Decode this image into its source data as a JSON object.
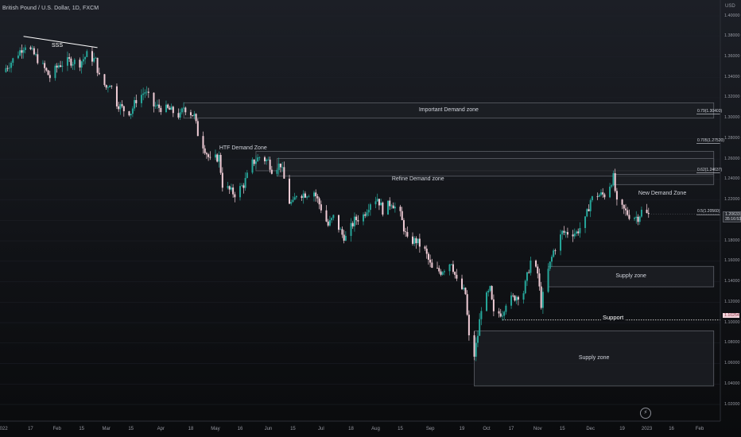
{
  "symbol": {
    "title": "British Pound / U.S. Dollar, 1D, FXCM"
  },
  "chart_data": {
    "type": "candlestick",
    "ylim": [
      1.02,
      1.4
    ],
    "price_ticks": [
      "1.40000",
      "1.38000",
      "1.36000",
      "1.34000",
      "1.32000",
      "1.30000",
      "1.28000",
      "1.26000",
      "1.24000",
      "1.22000",
      "1.20000",
      "1.18000",
      "1.16000",
      "1.14000",
      "1.12000",
      "1.10000",
      "1.08000",
      "1.06000",
      "1.04000",
      "1.02000"
    ],
    "currency": "USD",
    "time_ticks": [
      {
        "label": "2022",
        "date": "2022-01-01"
      },
      {
        "label": "17",
        "date": "2022-01-17"
      },
      {
        "label": "Feb",
        "date": "2022-02-01"
      },
      {
        "label": "15",
        "date": "2022-02-15"
      },
      {
        "label": "Mar",
        "date": "2022-03-01"
      },
      {
        "label": "15",
        "date": "2022-03-15"
      },
      {
        "label": "Apr",
        "date": "2022-04-01"
      },
      {
        "label": "18",
        "date": "2022-04-18"
      },
      {
        "label": "May",
        "date": "2022-05-02"
      },
      {
        "label": "16",
        "date": "2022-05-16"
      },
      {
        "label": "Jun",
        "date": "2022-06-01"
      },
      {
        "label": "15",
        "date": "2022-06-15"
      },
      {
        "label": "Jul",
        "date": "2022-07-01"
      },
      {
        "label": "18",
        "date": "2022-07-18"
      },
      {
        "label": "Aug",
        "date": "2022-08-01"
      },
      {
        "label": "15",
        "date": "2022-08-15"
      },
      {
        "label": "Sep",
        "date": "2022-09-01"
      },
      {
        "label": "19",
        "date": "2022-09-19"
      },
      {
        "label": "Oct",
        "date": "2022-10-03"
      },
      {
        "label": "17",
        "date": "2022-10-17"
      },
      {
        "label": "Nov",
        "date": "2022-11-01"
      },
      {
        "label": "15",
        "date": "2022-11-15"
      },
      {
        "label": "Dec",
        "date": "2022-12-01"
      },
      {
        "label": "19",
        "date": "2022-12-19"
      },
      {
        "label": "2023",
        "date": "2023-01-02"
      },
      {
        "label": "16",
        "date": "2023-01-16"
      },
      {
        "label": "Feb",
        "date": "2023-02-01"
      }
    ],
    "close_path": [
      [
        "2022-01-01",
        1.345
      ],
      [
        "2022-01-06",
        1.355
      ],
      [
        "2022-01-12",
        1.368
      ],
      [
        "2022-01-14",
        1.372
      ],
      [
        "2022-01-20",
        1.36
      ],
      [
        "2022-01-25",
        1.348
      ],
      [
        "2022-01-28",
        1.34
      ],
      [
        "2022-02-02",
        1.352
      ],
      [
        "2022-02-08",
        1.356
      ],
      [
        "2022-02-14",
        1.354
      ],
      [
        "2022-02-18",
        1.362
      ],
      [
        "2022-02-23",
        1.356
      ],
      [
        "2022-02-25",
        1.34
      ],
      [
        "2022-03-01",
        1.33
      ],
      [
        "2022-03-03",
        1.335
      ],
      [
        "2022-03-07",
        1.315
      ],
      [
        "2022-03-11",
        1.308
      ],
      [
        "2022-03-15",
        1.306
      ],
      [
        "2022-03-18",
        1.318
      ],
      [
        "2022-03-23",
        1.326
      ],
      [
        "2022-03-28",
        1.312
      ],
      [
        "2022-04-01",
        1.31
      ],
      [
        "2022-04-06",
        1.308
      ],
      [
        "2022-04-12",
        1.302
      ],
      [
        "2022-04-14",
        1.311
      ],
      [
        "2022-04-20",
        1.302
      ],
      [
        "2022-04-22",
        1.285
      ],
      [
        "2022-04-26",
        1.27
      ],
      [
        "2022-04-29",
        1.258
      ],
      [
        "2022-05-04",
        1.262
      ],
      [
        "2022-05-06",
        1.235
      ],
      [
        "2022-05-11",
        1.228
      ],
      [
        "2022-05-13",
        1.226
      ],
      [
        "2022-05-18",
        1.235
      ],
      [
        "2022-05-23",
        1.256
      ],
      [
        "2022-05-27",
        1.262
      ],
      [
        "2022-06-01",
        1.258
      ],
      [
        "2022-06-03",
        1.25
      ],
      [
        "2022-06-08",
        1.255
      ],
      [
        "2022-06-13",
        1.218
      ],
      [
        "2022-06-15",
        1.216
      ],
      [
        "2022-06-17",
        1.226
      ],
      [
        "2022-06-22",
        1.226
      ],
      [
        "2022-06-27",
        1.228
      ],
      [
        "2022-07-01",
        1.212
      ],
      [
        "2022-07-05",
        1.195
      ],
      [
        "2022-07-08",
        1.203
      ],
      [
        "2022-07-13",
        1.186
      ],
      [
        "2022-07-15",
        1.183
      ],
      [
        "2022-07-20",
        1.2
      ],
      [
        "2022-07-25",
        1.205
      ],
      [
        "2022-07-29",
        1.218
      ],
      [
        "2022-08-02",
        1.222
      ],
      [
        "2022-08-05",
        1.21
      ],
      [
        "2022-08-10",
        1.218
      ],
      [
        "2022-08-15",
        1.205
      ],
      [
        "2022-08-19",
        1.18
      ],
      [
        "2022-08-24",
        1.18
      ],
      [
        "2022-08-29",
        1.17
      ],
      [
        "2022-09-02",
        1.152
      ],
      [
        "2022-09-07",
        1.15
      ],
      [
        "2022-09-13",
        1.16
      ],
      [
        "2022-09-16",
        1.14
      ],
      [
        "2022-09-21",
        1.128
      ],
      [
        "2022-09-23",
        1.085
      ],
      [
        "2022-09-26",
        1.068
      ],
      [
        "2022-09-28",
        1.088
      ],
      [
        "2022-09-30",
        1.115
      ],
      [
        "2022-10-05",
        1.132
      ],
      [
        "2022-10-07",
        1.108
      ],
      [
        "2022-10-12",
        1.11
      ],
      [
        "2022-10-14",
        1.12
      ],
      [
        "2022-10-19",
        1.125
      ],
      [
        "2022-10-24",
        1.13
      ],
      [
        "2022-10-28",
        1.16
      ],
      [
        "2022-11-01",
        1.148
      ],
      [
        "2022-11-03",
        1.118
      ],
      [
        "2022-11-07",
        1.151
      ],
      [
        "2022-11-10",
        1.17
      ],
      [
        "2022-11-15",
        1.188
      ],
      [
        "2022-11-18",
        1.188
      ],
      [
        "2022-11-23",
        1.188
      ],
      [
        "2022-11-28",
        1.2
      ],
      [
        "2022-12-01",
        1.22
      ],
      [
        "2022-12-05",
        1.225
      ],
      [
        "2022-12-09",
        1.225
      ],
      [
        "2022-12-14",
        1.242
      ],
      [
        "2022-12-16",
        1.216
      ],
      [
        "2022-12-20",
        1.21
      ],
      [
        "2022-12-23",
        1.205
      ],
      [
        "2022-12-28",
        1.203
      ],
      [
        "2022-12-30",
        1.209
      ],
      [
        "2023-01-03",
        1.205
      ]
    ],
    "zones": [
      {
        "label": "Important Demand zone",
        "from": "2022-04-14",
        "to": "2023-02-09",
        "low": 1.3,
        "high": 1.315,
        "style": "dark"
      },
      {
        "label": "",
        "from": "2022-05-25",
        "to": "2023-02-09",
        "low": 1.2485,
        "high": 1.2675,
        "style": "dark"
      },
      {
        "label": "",
        "from": "2022-06-06",
        "to": "2023-02-09",
        "low": 1.2432,
        "high": 1.2605,
        "style": "dark"
      },
      {
        "label": "",
        "from": "2022-12-14",
        "to": "2023-02-09",
        "low": 1.235,
        "high": 1.245,
        "style": "dark"
      },
      {
        "label": "Supply zone",
        "from": "2022-11-07",
        "to": "2023-02-09",
        "low": 1.135,
        "high": 1.155,
        "style": "dark"
      },
      {
        "label": "Supply zone",
        "from": "2022-09-26",
        "to": "2023-02-09",
        "low": 1.038,
        "high": 1.092,
        "style": "dark"
      }
    ],
    "fib_levels": [
      {
        "label": "0.79(1.30403)",
        "value": 1.304
      },
      {
        "label": "0.705(1.27520)",
        "value": 1.2752
      },
      {
        "label": "0.62(1.24637)",
        "value": 1.2464
      },
      {
        "label": "0.5(1.20560)",
        "value": 1.2056
      }
    ],
    "support": {
      "label": "Support",
      "value": 1.10254,
      "from": "2022-10-12",
      "to": "2023-02-09"
    },
    "sss": {
      "label": "SSS",
      "from": "2022-01-13",
      "to": "2022-02-24",
      "from_value": 1.38,
      "to_value": 1.369
    },
    "annotations": [
      {
        "label": "HTF Demand Zone",
        "date": "2022-05-20",
        "value": 1.27
      },
      {
        "label": "Refine Demand zone",
        "date": "2022-08-26",
        "value": 1.24
      },
      {
        "label": "New Demand Zone",
        "date": "2023-01-13",
        "value": 1.226
      }
    ],
    "current_price": {
      "label": "1.20633",
      "sub": "35:16:53",
      "value": 1.20633
    },
    "support_tag": {
      "label": "1.10254",
      "value": 1.10254
    },
    "colors": {
      "up": "#26a69a",
      "down": "#f1cdd7",
      "zone_fill": "#1e2026",
      "zone_border": "#5d6068",
      "support": "#ffffff"
    }
  }
}
